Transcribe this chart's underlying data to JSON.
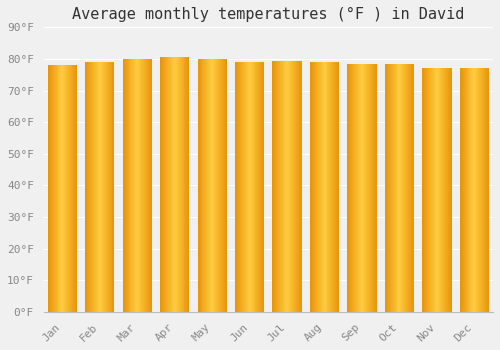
{
  "title": "Average monthly temperatures (°F ) in David",
  "categories": [
    "Jan",
    "Feb",
    "Mar",
    "Apr",
    "May",
    "Jun",
    "Jul",
    "Aug",
    "Sep",
    "Oct",
    "Nov",
    "Dec"
  ],
  "values": [
    78,
    79,
    80,
    80.5,
    80,
    79,
    79.5,
    79,
    78.5,
    78.5,
    77,
    77
  ],
  "ylim": [
    0,
    90
  ],
  "yticks": [
    0,
    10,
    20,
    30,
    40,
    50,
    60,
    70,
    80,
    90
  ],
  "bar_color_left": "#E8950A",
  "bar_color_center": "#FFCC40",
  "bar_color_right": "#E8950A",
  "background_color": "#F0F0F0",
  "title_fontsize": 11,
  "tick_fontsize": 8,
  "font_family": "monospace"
}
